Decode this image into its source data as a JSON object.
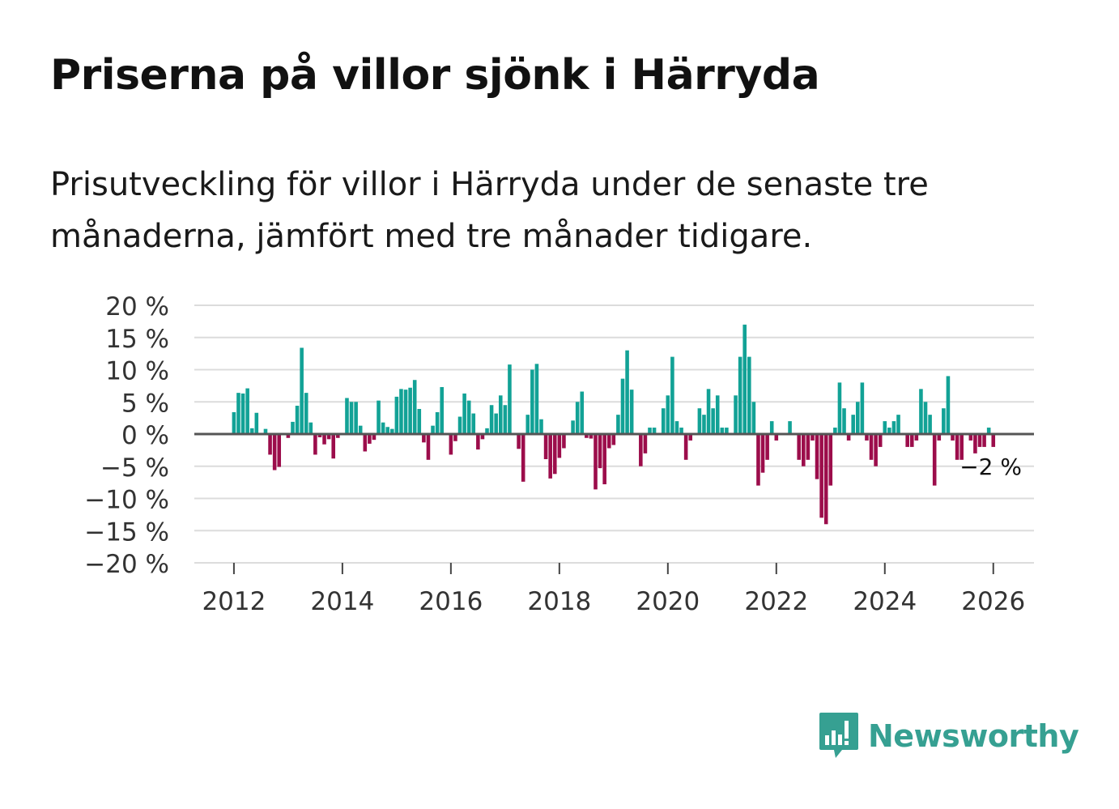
{
  "title": "Priserna på villor sjönk i Härryda",
  "subtitle": "Prisutveckling för villor i Härryda under de senaste tre månaderna, jämfört med tre månader tidigare.",
  "brand": {
    "name": "Newsworthy",
    "icon": "newsworthy-logo-icon"
  },
  "colors": {
    "positive": "#12a296",
    "negative": "#9c0d4b",
    "grid": "#dcdcdc",
    "zero_line": "#555555",
    "axis_text": "#333333",
    "brand": "#36a092"
  },
  "chart_data": {
    "type": "bar",
    "title": "Priserna på villor sjönk i Härryda",
    "xlabel": "",
    "ylabel": "",
    "ylim": [
      -20,
      20
    ],
    "y_ticks": [
      20,
      15,
      10,
      5,
      0,
      -5,
      -10,
      -15,
      -20
    ],
    "y_tick_labels": [
      "20 %",
      "15 %",
      "10 %",
      "5 %",
      "0 %",
      "−5 %",
      "−10 %",
      "−15 %",
      "−20 %"
    ],
    "x_start": "2011-12",
    "x_tick_years": [
      2012,
      2014,
      2016,
      2018,
      2020,
      2022,
      2024,
      2026
    ],
    "x_tick_labels": [
      "2012",
      "2014",
      "2016",
      "2018",
      "2020",
      "2022",
      "2024",
      "2026"
    ],
    "xlim": [
      2011.27,
      2026.75
    ],
    "grid": true,
    "last_label": "−2 %",
    "series": [
      {
        "name": "Prisutveckling",
        "values": [
          0,
          3.4,
          6.4,
          6.3,
          7.1,
          0.9,
          3.3,
          0,
          0.8,
          -3.2,
          -5.6,
          -5.1,
          0,
          -0.6,
          1.9,
          4.4,
          13.4,
          6.4,
          1.8,
          -3.2,
          -0.5,
          -1.6,
          -0.8,
          -3.8,
          -0.6,
          0,
          5.6,
          5.0,
          5.0,
          1.3,
          -2.7,
          -1.5,
          -0.9,
          5.2,
          1.8,
          1.1,
          0.8,
          5.8,
          7.0,
          6.9,
          7.2,
          8.4,
          3.9,
          -1.3,
          -4.0,
          1.3,
          3.4,
          7.3,
          0,
          -3.2,
          -1.1,
          2.7,
          6.3,
          5.2,
          3.2,
          -2.4,
          -0.8,
          0.9,
          4.5,
          3.2,
          6.0,
          4.5,
          10.8,
          0,
          -2.3,
          -7.4,
          3.0,
          10.0,
          10.9,
          2.3,
          -3.9,
          -6.9,
          -6.2,
          -3.7,
          -2.2,
          0,
          2.1,
          5.0,
          6.6,
          -0.6,
          -0.7,
          -8.6,
          -5.3,
          -7.8,
          -2.2,
          -1.7,
          3.0,
          8.6,
          13.0,
          6.9,
          0,
          -5.0,
          -3.0,
          1.0,
          1.0,
          0,
          4.0,
          6.0,
          12.0,
          2.0,
          1.0,
          -4.0,
          -1.0,
          0,
          4.0,
          3.0,
          7.0,
          4.0,
          6.0,
          1.0,
          1.0,
          0,
          6.0,
          12.0,
          17.0,
          12.0,
          5.0,
          -8.0,
          -6.0,
          -4.0,
          2.0,
          -1.0,
          0,
          0,
          2.0,
          0,
          -4.0,
          -5.0,
          -4.0,
          -1.0,
          -7.0,
          -13.0,
          -14.0,
          -8.0,
          1.0,
          8.0,
          4.0,
          -1.0,
          3.0,
          5.0,
          8.0,
          -1.0,
          -4.0,
          -5.0,
          -2.0,
          2.0,
          1.0,
          2.0,
          3.0,
          0,
          -2.0,
          -2.0,
          -1.0,
          7.0,
          5.0,
          3.0,
          -8.0,
          -1.0,
          4.0,
          9.0,
          -1.0,
          -4.0,
          -4.0,
          0,
          -1.0,
          -3.0,
          -2.0,
          -2.0,
          1.0,
          -2.0
        ]
      }
    ]
  }
}
